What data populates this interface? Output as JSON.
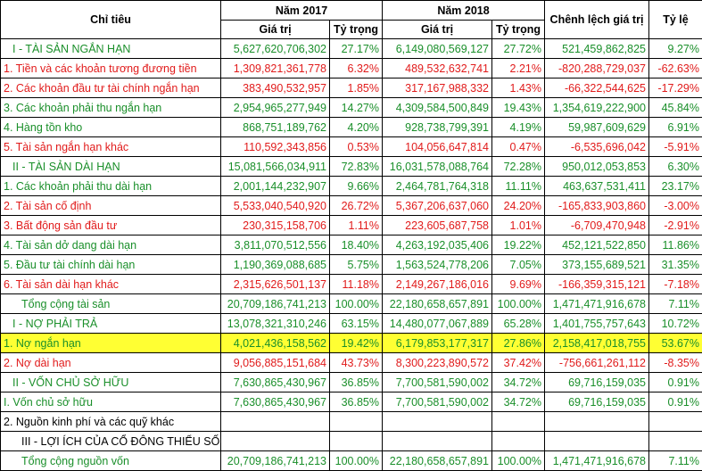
{
  "header": {
    "col_label": "Chỉ tiêu",
    "year1": "Năm 2017",
    "year2": "Năm 2018",
    "diff": "Chênh lệch giá trị",
    "ratio": "Tỷ lệ",
    "value": "Giá trị",
    "weight": "Tỷ trọng"
  },
  "colors": {
    "green": "#1a8f2a",
    "red": "#e11b1b",
    "highlight": "#ffff33"
  },
  "rows": [
    {
      "label": "I - TÀI SẢN NGẮN HẠN",
      "v17": "5,627,620,706,302",
      "w17": "27.17%",
      "v18": "6,149,080,569,127",
      "w18": "27.72%",
      "diff": "521,459,862,825",
      "ratio": "9.27%",
      "color": "green",
      "indent": "  "
    },
    {
      "label": "1. Tiền và các khoản tương đương tiền",
      "v17": "1,309,821,361,778",
      "w17": "6.32%",
      "v18": "489,532,632,741",
      "w18": "2.21%",
      "diff": "-820,288,729,037",
      "ratio": "-62.63%",
      "color": "red"
    },
    {
      "label": "2. Các khoản đầu tư tài chính ngắn hạn",
      "v17": "383,490,532,957",
      "w17": "1.85%",
      "v18": "317,167,988,332",
      "w18": "1.43%",
      "diff": "-66,322,544,625",
      "ratio": "-17.29%",
      "color": "red"
    },
    {
      "label": "3. Các khoản phải thu ngắn hạn",
      "v17": "2,954,965,277,949",
      "w17": "14.27%",
      "v18": "4,309,584,500,849",
      "w18": "19.43%",
      "diff": "1,354,619,222,900",
      "ratio": "45.84%",
      "color": "green"
    },
    {
      "label": "4. Hàng tồn kho",
      "v17": "868,751,189,762",
      "w17": "4.20%",
      "v18": "928,738,799,391",
      "w18": "4.19%",
      "diff": "59,987,609,629",
      "ratio": "6.91%",
      "color": "green"
    },
    {
      "label": "5. Tài sản ngắn hạn khác",
      "v17": "110,592,343,856",
      "w17": "0.53%",
      "v18": "104,056,647,814",
      "w18": "0.47%",
      "diff": "-6,535,696,042",
      "ratio": "-5.91%",
      "color": "red"
    },
    {
      "label": "II - TÀI SẢN DÀI HẠN",
      "v17": "15,081,566,034,911",
      "w17": "72.83%",
      "v18": "16,031,578,088,764",
      "w18": "72.28%",
      "diff": "950,012,053,853",
      "ratio": "6.30%",
      "color": "green",
      "indent": "  "
    },
    {
      "label": "1. Các khoản phải thu dài hạn",
      "v17": "2,001,144,232,907",
      "w17": "9.66%",
      "v18": "2,464,781,764,318",
      "w18": "11.11%",
      "diff": "463,637,531,411",
      "ratio": "23.17%",
      "color": "green"
    },
    {
      "label": "2. Tài sản cố định",
      "v17": "5,533,040,540,920",
      "w17": "26.72%",
      "v18": "5,367,206,637,060",
      "w18": "24.20%",
      "diff": "-165,833,903,860",
      "ratio": "-3.00%",
      "color": "red"
    },
    {
      "label": "3. Bất động sản đầu tư",
      "v17": "230,315,158,706",
      "w17": "1.11%",
      "v18": "223,605,687,758",
      "w18": "1.01%",
      "diff": "-6,709,470,948",
      "ratio": "-2.91%",
      "color": "red"
    },
    {
      "label": "4. Tài sản dở dang dài hạn",
      "v17": "3,811,070,512,556",
      "w17": "18.40%",
      "v18": "4,263,192,035,406",
      "w18": "19.22%",
      "diff": "452,121,522,850",
      "ratio": "11.86%",
      "color": "green"
    },
    {
      "label": "5. Đầu tư tài chính dài hạn",
      "v17": "1,190,369,088,685",
      "w17": "5.75%",
      "v18": "1,563,524,778,206",
      "w18": "7.05%",
      "diff": "373,155,689,521",
      "ratio": "31.35%",
      "color": "green"
    },
    {
      "label": "6. Tài sản dài hạn khác",
      "v17": "2,315,626,501,137",
      "w17": "11.18%",
      "v18": "2,149,267,186,016",
      "w18": "9.69%",
      "diff": "-166,359,315,121",
      "ratio": "-7.18%",
      "color": "red"
    },
    {
      "label": "Tổng cộng tài sản",
      "v17": "20,709,186,741,213",
      "w17": "100.00%",
      "v18": "22,180,658,657,891",
      "w18": "100.00%",
      "diff": "1,471,471,916,678",
      "ratio": "7.11%",
      "color": "green",
      "indent": "    "
    },
    {
      "label": "I - NỢ PHẢI TRẢ",
      "v17": "13,078,321,310,246",
      "w17": "63.15%",
      "v18": "14,480,077,067,889",
      "w18": "65.28%",
      "diff": "1,401,755,757,643",
      "ratio": "10.72%",
      "color": "green",
      "indent": "  "
    },
    {
      "label": "1. Nợ ngắn hạn",
      "v17": "4,021,436,158,562",
      "w17": "19.42%",
      "v18": "6,179,853,177,317",
      "w18": "27.86%",
      "diff": "2,158,417,018,755",
      "ratio": "53.67%",
      "color": "green",
      "highlight": true
    },
    {
      "label": "2. Nợ dài hạn",
      "v17": "9,056,885,151,684",
      "w17": "43.73%",
      "v18": "8,300,223,890,572",
      "w18": "37.42%",
      "diff": "-756,661,261,112",
      "ratio": "-8.35%",
      "color": "red"
    },
    {
      "label": "II - VỐN CHỦ SỞ HỮU",
      "v17": "7,630,865,430,967",
      "w17": "36.85%",
      "v18": "7,700,581,590,002",
      "w18": "34.72%",
      "diff": "69,716,159,035",
      "ratio": "0.91%",
      "color": "green",
      "indent": "  "
    },
    {
      "label": "I. Vốn chủ sở hữu",
      "v17": "7,630,865,430,967",
      "w17": "36.85%",
      "v18": "7,700,581,590,002",
      "w18": "34.72%",
      "diff": "69,716,159,035",
      "ratio": "0.91%",
      "color": "green"
    },
    {
      "label": "2. Nguồn kinh phí và các quỹ khác",
      "v17": "",
      "w17": "",
      "v18": "",
      "w18": "",
      "diff": "",
      "ratio": "",
      "color": "black"
    },
    {
      "label": "III - LỢI ÍCH CỦA CỔ ĐÔNG THIỂU SỐ",
      "v17": "",
      "w17": "",
      "v18": "",
      "w18": "",
      "diff": "",
      "ratio": "",
      "color": "black",
      "indent": "    "
    },
    {
      "label": "Tổng cộng nguồn vốn",
      "v17": "20,709,186,741,213",
      "w17": "100.00%",
      "v18": "22,180,658,657,891",
      "w18": "100.00%",
      "diff": "1,471,471,916,678",
      "ratio": "7.11%",
      "color": "green",
      "indent": "    "
    }
  ]
}
